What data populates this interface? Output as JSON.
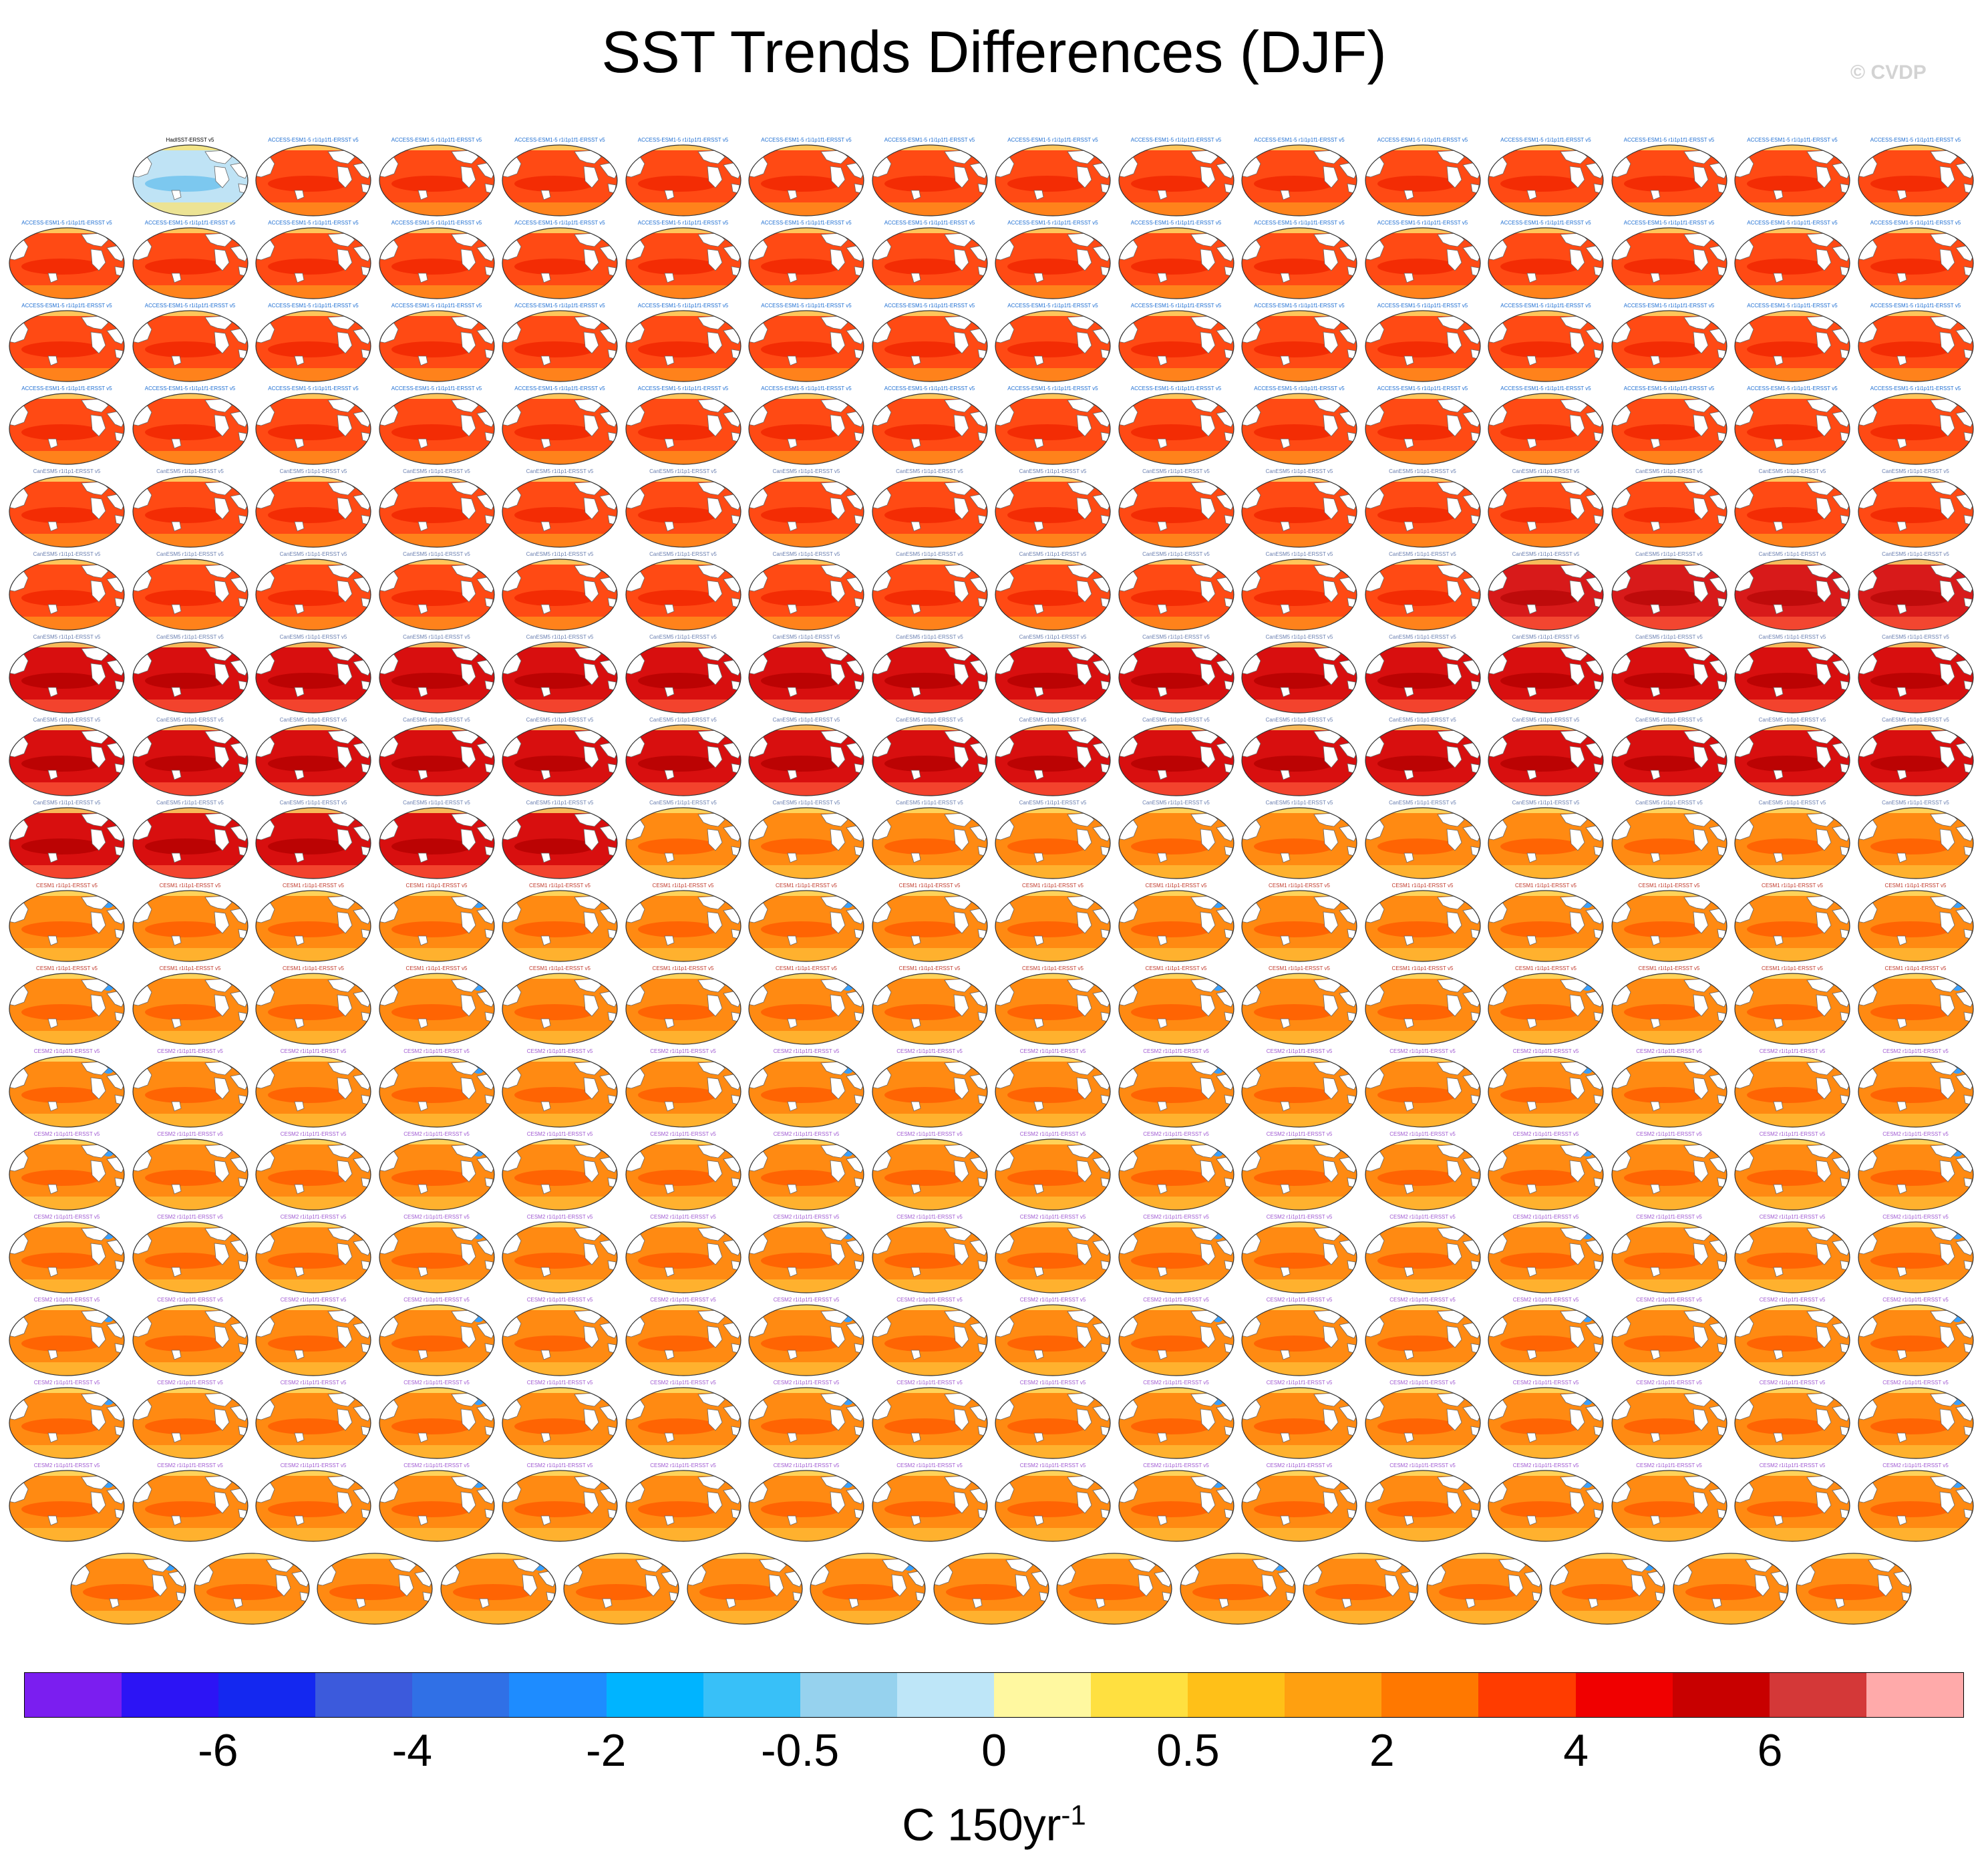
{
  "title": "SST Trends Differences (DJF)",
  "watermark": "© CVDP",
  "colorbar": {
    "colors": [
      "#7b1ef0",
      "#2c14f5",
      "#1428f0",
      "#3c5adc",
      "#3070e6",
      "#1e8cff",
      "#00b4ff",
      "#38c0f8",
      "#96d2ee",
      "#bee6f8",
      "#fff8a0",
      "#ffe040",
      "#ffc018",
      "#ffa010",
      "#ff7800",
      "#ff3c00",
      "#f00000",
      "#c80000",
      "#d43838",
      "#ffaaaa"
    ],
    "tick_labels": [
      "-6",
      "-4",
      "-2",
      "-0.5",
      "0",
      "0.5",
      "2",
      "4",
      "6"
    ],
    "units_text": "C 150yr",
    "units_sup": "-1"
  },
  "panels": {
    "first_title": "HadISST-ERSST v5",
    "row1_title": "ACCESS-ESM1-5 r1i1p1f1-ERSST v5",
    "row2_title": "CanESM5 r1i1p1-ERSST v5",
    "row3_title": "CESM1 r1i1p1-ERSST v5",
    "row4_title": "CESM2 r1i1p1f1-ERSST v5",
    "intensity_note": "heavy"
  }
}
